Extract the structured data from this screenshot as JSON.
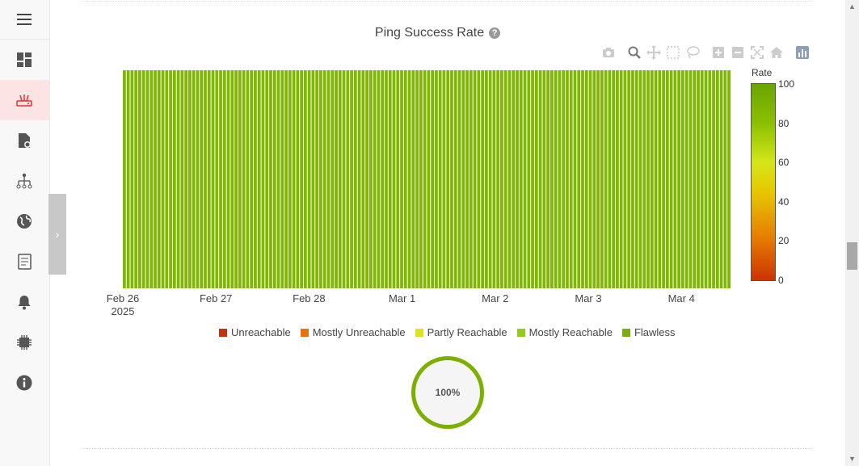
{
  "sidebar": {
    "items": [
      {
        "name": "dashboard",
        "icon": "dashboard-icon"
      },
      {
        "name": "router",
        "icon": "router-icon",
        "active": true
      },
      {
        "name": "config-file",
        "icon": "file-gear-icon"
      },
      {
        "name": "network-tree",
        "icon": "network-tree-icon"
      },
      {
        "name": "globe",
        "icon": "globe-icon"
      },
      {
        "name": "reports",
        "icon": "report-icon"
      },
      {
        "name": "alerts",
        "icon": "bell-icon"
      },
      {
        "name": "hardware",
        "icon": "chip-icon"
      },
      {
        "name": "info",
        "icon": "info-icon"
      }
    ],
    "active_color": "#fde4e4"
  },
  "chart": {
    "title": "Ping Success Rate",
    "help_symbol": "?",
    "modebar": [
      "camera-icon",
      "zoom-icon",
      "pan-icon",
      "box-select-icon",
      "lasso-icon",
      "zoom-in-icon",
      "zoom-out-icon",
      "autoscale-icon",
      "reset-axes-icon",
      "plotly-logo-icon"
    ]
  },
  "chart_data": {
    "type": "heatmap",
    "x_ticks": [
      {
        "label": "Feb 26",
        "sub": "2025"
      },
      {
        "label": "Feb 27",
        "sub": ""
      },
      {
        "label": "Feb 28",
        "sub": ""
      },
      {
        "label": "Mar 1",
        "sub": ""
      },
      {
        "label": "Mar 2",
        "sub": ""
      },
      {
        "label": "Mar 3",
        "sub": ""
      },
      {
        "label": "Mar 4",
        "sub": ""
      }
    ],
    "x_range": [
      "2025-02-26",
      "2025-03-04T14:00"
    ],
    "intervals_per_day": 24,
    "value": 100,
    "cell_color": "#7fb800",
    "colorbar": {
      "title": "Rate",
      "ticks": [
        100,
        80,
        60,
        40,
        20,
        0
      ],
      "range": [
        0,
        100
      ]
    },
    "legend": [
      {
        "label": "Unreachable",
        "color": "#c0340e"
      },
      {
        "label": "Mostly Unreachable",
        "color": "#e8700d"
      },
      {
        "label": "Partly Reachable",
        "color": "#dde21f"
      },
      {
        "label": "Mostly Reachable",
        "color": "#92cc1e"
      },
      {
        "label": "Flawless",
        "color": "#7aab18"
      }
    ]
  },
  "gauge": {
    "label": "100%",
    "color": "#7cb000"
  }
}
